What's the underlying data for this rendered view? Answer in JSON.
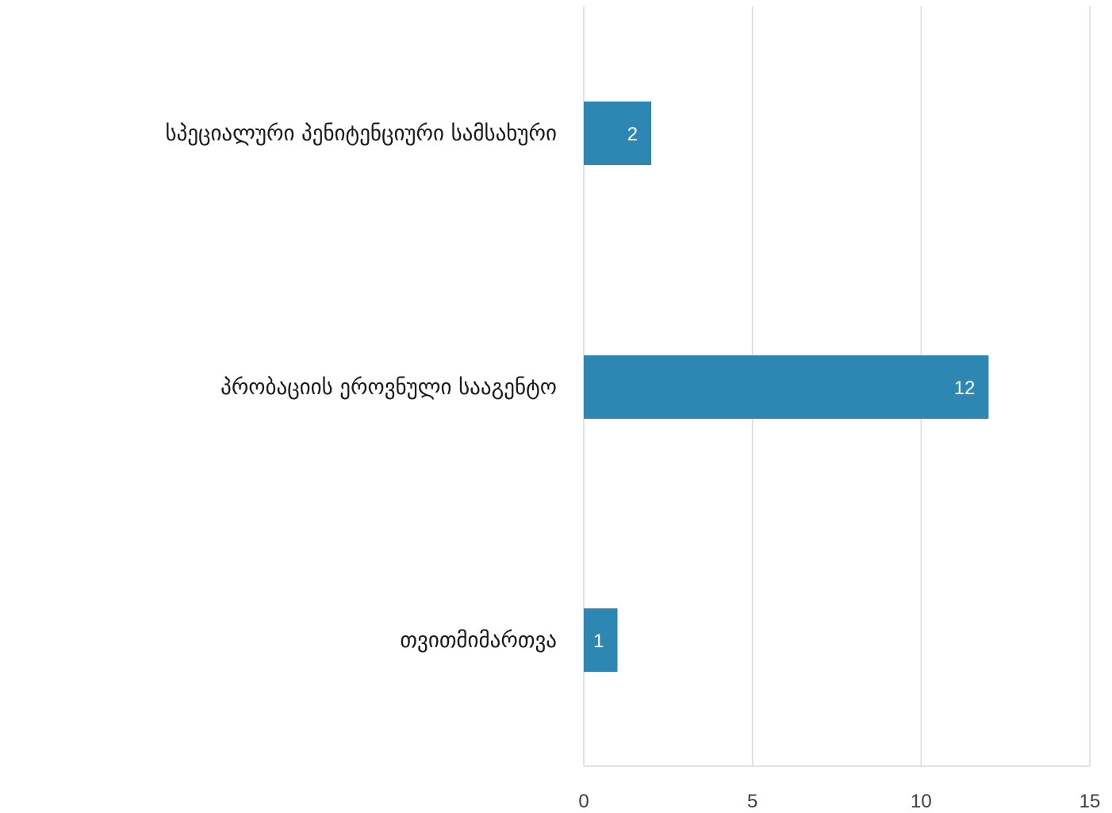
{
  "chart_data": {
    "type": "bar",
    "orientation": "horizontal",
    "categories": [
      "სპეციალური პენიტენციური სამსახური",
      "პრობაციის ეროვნული სააგენტო",
      "თვითმიმართვა"
    ],
    "values": [
      2,
      12,
      1
    ],
    "xlim": [
      0,
      15
    ],
    "xticks": [
      0,
      5,
      10,
      15
    ],
    "grid": true,
    "legend": "none",
    "data_labels": true,
    "colors": {
      "bar": "#2e86b3",
      "grid": "#d9d9d9",
      "label": "#ffffff"
    }
  }
}
